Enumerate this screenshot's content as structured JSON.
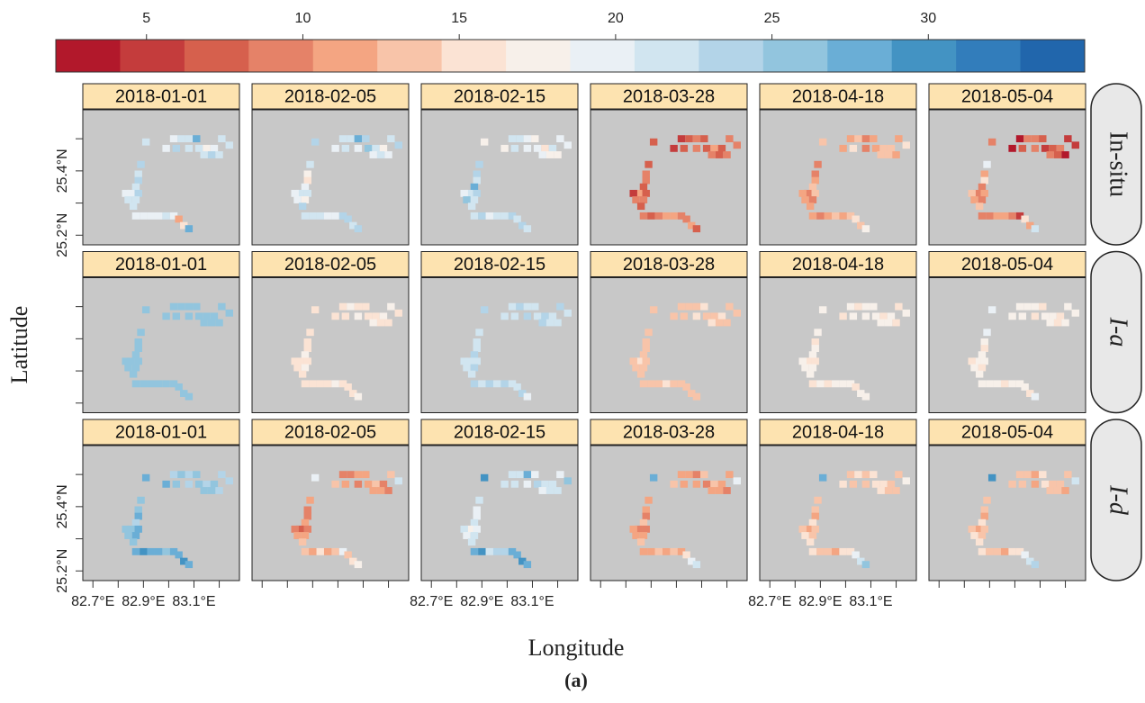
{
  "chart_data": {
    "type": "heatmap",
    "xlabel": "Longitude",
    "ylabel": "Latitude",
    "caption": "(a)",
    "colorbar": {
      "lim": [
        2.1,
        35
      ],
      "ticks": [
        5,
        10,
        15,
        20,
        25,
        30
      ],
      "colors": [
        "#b2182b",
        "#c43c3c",
        "#d6604d",
        "#e58268",
        "#f4a582",
        "#f8c4a9",
        "#fbe3d4",
        "#f7f0ea",
        "#eaf0f5",
        "#d1e5f0",
        "#b3d4e8",
        "#92c5de",
        "#6aaed6",
        "#4393c3",
        "#327dbb",
        "#2166ac"
      ]
    },
    "xlim": [
      82.66,
      83.28
    ],
    "ylim": [
      25.17,
      25.59
    ],
    "xticks": [
      {
        "value": 82.7,
        "label": "82.7°E"
      },
      {
        "value": 82.9,
        "label": "82.9°E"
      },
      {
        "value": 83.1,
        "label": "83.1°E"
      }
    ],
    "xminor": [
      82.8,
      83.0,
      83.2
    ],
    "yticks": [
      {
        "value": 25.2,
        "label": "25.2°N"
      },
      {
        "value": 25.4,
        "label": "25.4°N"
      }
    ],
    "yminor": [
      25.3,
      25.5
    ],
    "cells": {
      "lon": [
        83.02,
        83.05,
        83.08,
        83.11,
        83.21,
        82.91,
        82.99,
        83.03,
        83.08,
        83.12,
        83.15,
        83.18,
        83.24,
        83.14,
        83.17,
        83.2,
        82.89,
        82.88,
        82.88,
        82.87,
        82.85,
        82.83,
        82.88,
        82.84,
        82.87,
        82.86,
        82.87,
        82.9,
        82.93,
        82.96,
        82.99,
        83.02,
        83.04,
        83.06,
        83.08
      ],
      "lat": [
        25.5,
        25.5,
        25.5,
        25.5,
        25.5,
        25.49,
        25.47,
        25.47,
        25.47,
        25.47,
        25.47,
        25.47,
        25.48,
        25.45,
        25.45,
        25.45,
        25.42,
        25.39,
        25.37,
        25.35,
        25.33,
        25.33,
        25.33,
        25.31,
        25.31,
        25.29,
        25.26,
        25.26,
        25.26,
        25.26,
        25.26,
        25.26,
        25.25,
        25.23,
        25.22
      ]
    },
    "rows": [
      {
        "name": "In-situ",
        "panels": [
          {
            "date": "2018-01-01",
            "values": [
              20,
              22,
              21,
              27,
              21,
              22,
              19,
              23,
              22,
              21,
              18,
              20,
              22,
              21,
              23,
              22,
              24,
              22,
              23,
              21,
              20,
              19,
              24,
              22,
              21,
              22,
              20,
              19,
              20,
              19,
              21,
              20,
              12,
              16,
              27
            ]
          },
          {
            "date": "2018-02-05",
            "values": [
              22,
              21,
              27,
              24,
              21,
              23,
              20,
              21,
              19,
              26,
              22,
              18,
              24,
              20,
              22,
              19,
              21,
              18,
              16,
              20,
              22,
              19,
              21,
              20,
              18,
              23,
              22,
              21,
              21,
              20,
              19,
              23,
              24,
              22,
              24
            ]
          },
          {
            "date": "2018-02-15",
            "values": [
              22,
              21,
              20,
              17,
              19,
              18,
              18,
              22,
              19,
              20,
              15,
              21,
              19,
              20,
              17,
              18,
              23,
              24,
              21,
              28,
              22,
              20,
              23,
              25,
              22,
              21,
              22,
              24,
              20,
              22,
              21,
              23,
              22,
              24,
              22
            ]
          },
          {
            "date": "2018-03-28",
            "values": [
              6,
              8,
              10,
              7,
              9,
              8,
              6,
              7,
              9,
              8,
              11,
              8,
              10,
              9,
              8,
              10,
              8,
              10,
              9,
              8,
              12,
              6,
              8,
              10,
              9,
              8,
              10,
              8,
              9,
              12,
              11,
              9,
              10,
              12,
              8
            ]
          },
          {
            "date": "2018-04-18",
            "values": [
              12,
              14,
              9,
              11,
              12,
              13,
              11,
              15,
              10,
              12,
              14,
              13,
              16,
              14,
              13,
              12,
              10,
              9,
              12,
              13,
              10,
              11,
              13,
              12,
              10,
              11,
              12,
              10,
              11,
              13,
              12,
              14,
              15,
              13,
              18
            ]
          },
          {
            "date": "2018-05-04",
            "values": [
              3,
              9,
              10,
              8,
              6,
              9,
              4,
              8,
              10,
              6,
              7,
              10,
              5,
              9,
              7,
              4,
              20,
              12,
              15,
              10,
              9,
              13,
              11,
              12,
              10,
              14,
              9,
              10,
              11,
              12,
              10,
              6,
              16,
              12,
              21
            ]
          }
        ]
      },
      {
        "name": "I-a",
        "panels": [
          {
            "date": "2018-01-01",
            "values": [
              25,
              26,
              25,
              26,
              25,
              25,
              26,
              25,
              26,
              25,
              26,
              25,
              26,
              25,
              26,
              25,
              25,
              26,
              26,
              25,
              26,
              25,
              26,
              25,
              26,
              25,
              25,
              26,
              25,
              26,
              25,
              26,
              25,
              26,
              25
            ]
          },
          {
            "date": "2018-02-05",
            "values": [
              16,
              17,
              15,
              16,
              17,
              16,
              15,
              16,
              17,
              15,
              16,
              17,
              16,
              17,
              16,
              15,
              16,
              15,
              16,
              17,
              15,
              16,
              15,
              16,
              17,
              16,
              15,
              16,
              15,
              16,
              17,
              16,
              15,
              16,
              17
            ]
          },
          {
            "date": "2018-02-15",
            "values": [
              22,
              23,
              21,
              22,
              24,
              23,
              21,
              22,
              23,
              22,
              23,
              21,
              22,
              23,
              22,
              21,
              22,
              21,
              22,
              23,
              21,
              22,
              21,
              22,
              23,
              22,
              23,
              22,
              23,
              22,
              23,
              22,
              21,
              23,
              19
            ]
          },
          {
            "date": "2018-03-28",
            "values": [
              14,
              13,
              14,
              15,
              13,
              14,
              13,
              14,
              15,
              14,
              13,
              15,
              14,
              15,
              14,
              13,
              14,
              13,
              14,
              13,
              15,
              14,
              13,
              14,
              13,
              14,
              14,
              13,
              14,
              15,
              14,
              13,
              14,
              13,
              14
            ]
          },
          {
            "date": "2018-04-18",
            "values": [
              17,
              16,
              17,
              18,
              16,
              17,
              16,
              17,
              18,
              17,
              16,
              18,
              17,
              18,
              17,
              16,
              17,
              16,
              17,
              18,
              16,
              17,
              16,
              17,
              18,
              17,
              16,
              17,
              16,
              17,
              18,
              17,
              16,
              17,
              18
            ]
          },
          {
            "date": "2018-05-04",
            "values": [
              17,
              18,
              17,
              16,
              18,
              20,
              18,
              17,
              16,
              18,
              17,
              16,
              18,
              17,
              16,
              18,
              19,
              17,
              16,
              18,
              17,
              16,
              18,
              17,
              16,
              18,
              17,
              18,
              17,
              16,
              17,
              18,
              17,
              16,
              19
            ]
          }
        ]
      },
      {
        "name": "I-d",
        "panels": [
          {
            "date": "2018-01-01",
            "values": [
              24,
              25,
              23,
              26,
              24,
              28,
              27,
              25,
              24,
              26,
              23,
              25,
              24,
              26,
              25,
              24,
              25,
              26,
              27,
              24,
              26,
              25,
              28,
              26,
              27,
              25,
              28,
              29,
              28,
              27,
              26,
              27,
              28,
              29,
              28
            ]
          },
          {
            "date": "2018-02-05",
            "values": [
              9,
              10,
              12,
              11,
              13,
              19,
              14,
              12,
              10,
              11,
              13,
              9,
              21,
              12,
              11,
              10,
              12,
              10,
              9,
              11,
              8,
              10,
              9,
              12,
              11,
              13,
              14,
              12,
              16,
              11,
              13,
              20,
              14,
              15,
              18
            ]
          },
          {
            "date": "2018-02-15",
            "values": [
              22,
              21,
              27,
              20,
              19,
              29,
              21,
              22,
              20,
              23,
              21,
              22,
              25,
              20,
              21,
              22,
              21,
              20,
              19,
              22,
              18,
              21,
              20,
              19,
              22,
              21,
              28,
              29,
              22,
              23,
              24,
              27,
              28,
              29,
              28
            ]
          },
          {
            "date": "2018-03-28",
            "values": [
              11,
              12,
              10,
              13,
              12,
              28,
              13,
              11,
              12,
              10,
              14,
              12,
              19,
              12,
              11,
              10,
              12,
              11,
              10,
              13,
              9,
              11,
              10,
              12,
              11,
              13,
              12,
              11,
              13,
              12,
              14,
              12,
              15,
              19,
              21
            ]
          },
          {
            "date": "2018-04-18",
            "values": [
              14,
              15,
              13,
              16,
              14,
              28,
              15,
              14,
              13,
              16,
              15,
              14,
              18,
              15,
              14,
              13,
              14,
              13,
              12,
              15,
              11,
              14,
              13,
              15,
              14,
              16,
              15,
              14,
              13,
              12,
              16,
              15,
              20,
              22,
              25
            ]
          },
          {
            "date": "2018-05-04",
            "values": [
              13,
              14,
              12,
              15,
              14,
              29,
              14,
              13,
              12,
              15,
              14,
              13,
              21,
              14,
              13,
              12,
              14,
              13,
              12,
              15,
              11,
              14,
              13,
              15,
              14,
              16,
              15,
              14,
              13,
              12,
              16,
              15,
              20,
              22,
              24
            ]
          }
        ]
      }
    ]
  }
}
